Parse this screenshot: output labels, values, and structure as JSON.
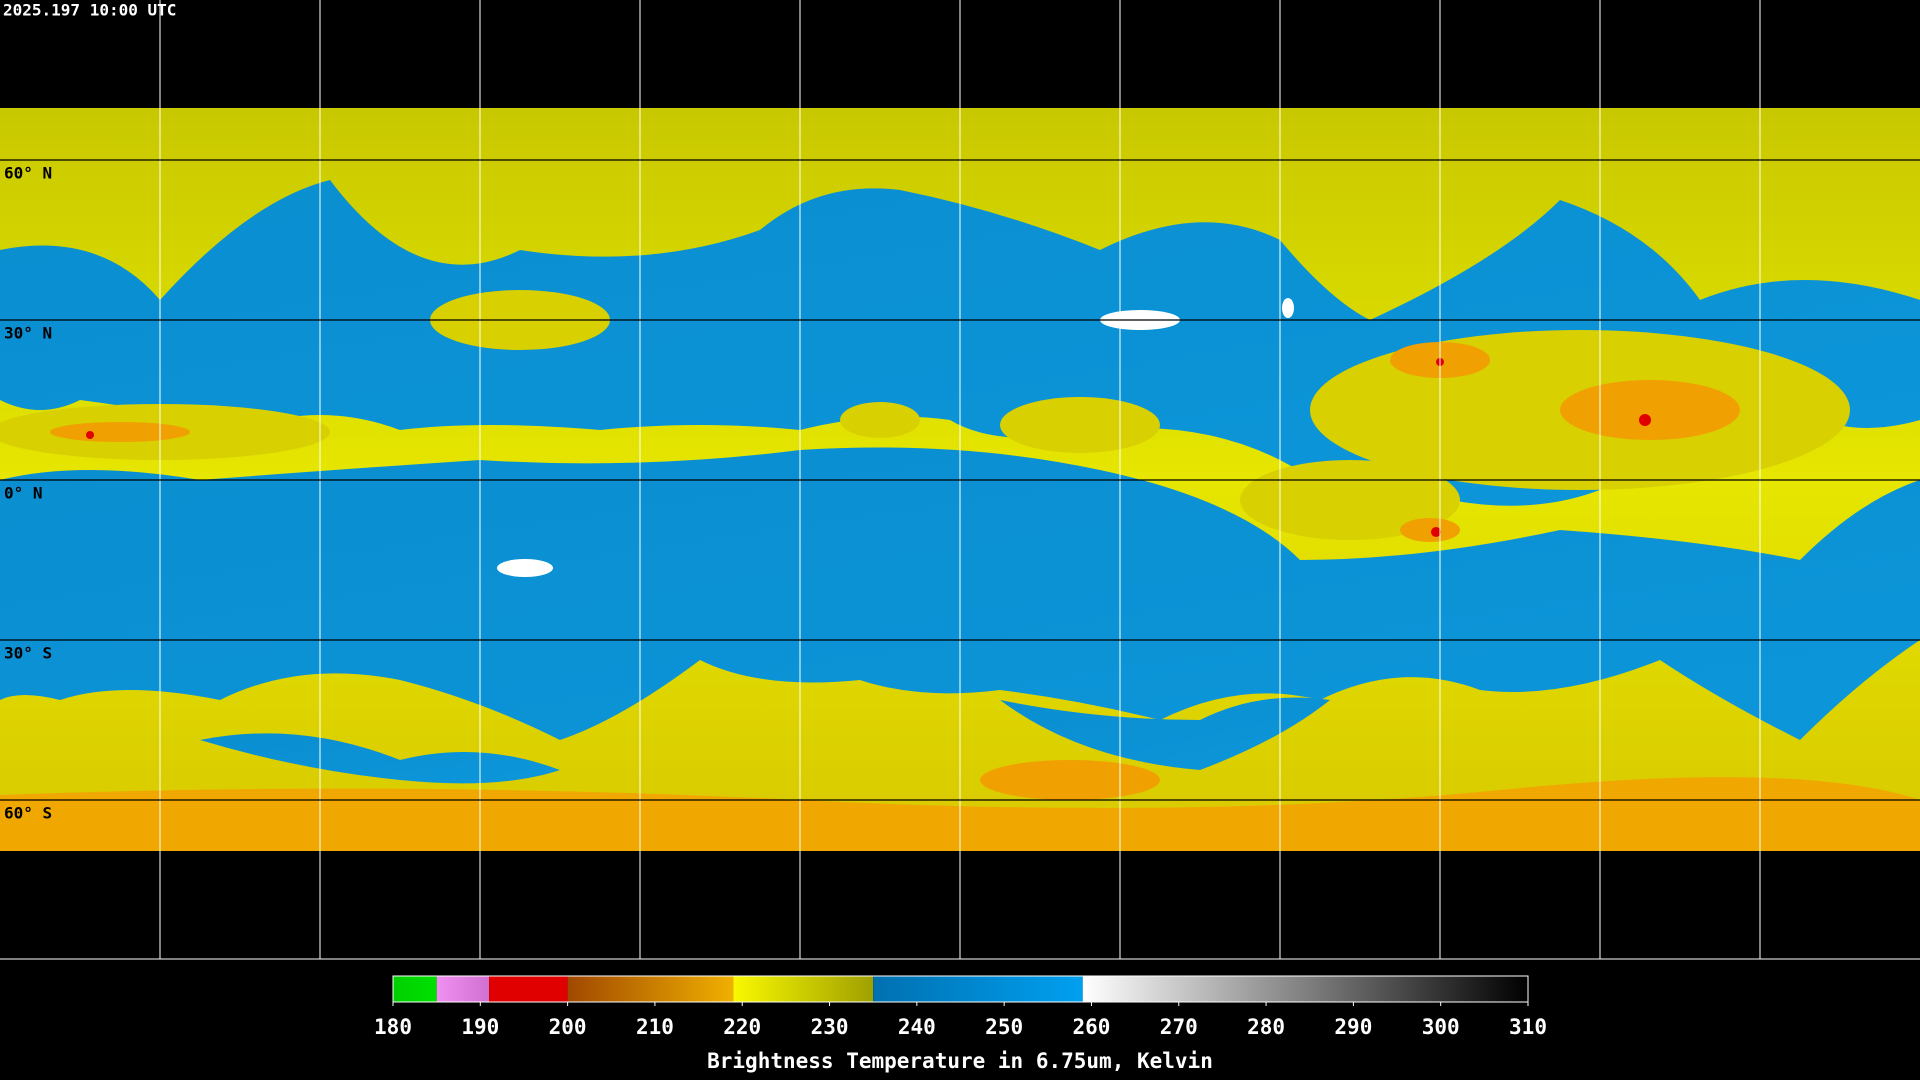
{
  "timestamp": "2025.197 10:00 UTC",
  "map": {
    "latitude_lines": [
      {
        "value": 60,
        "label": "60° N"
      },
      {
        "value": 30,
        "label": "30° N"
      },
      {
        "value": 0,
        "label": "0° N"
      },
      {
        "value": -30,
        "label": "30° S"
      },
      {
        "value": -60,
        "label": "60° S"
      }
    ]
  },
  "colorbar": {
    "title": "Brightness Temperature in 6.75um, Kelvin",
    "range": [
      180,
      310
    ],
    "ticks": [
      180,
      190,
      200,
      210,
      220,
      230,
      240,
      250,
      260,
      270,
      280,
      290,
      300,
      310
    ],
    "segments": [
      {
        "from": 180,
        "to": 185,
        "colors": [
          "#00d000",
          "#00e000"
        ]
      },
      {
        "from": 185,
        "to": 191,
        "colors": [
          "#f090f0",
          "#d070d0"
        ]
      },
      {
        "from": 191,
        "to": 200,
        "colors": [
          "#e00000",
          "#e00000"
        ]
      },
      {
        "from": 200,
        "to": 219,
        "colors": [
          "#a04800",
          "#f0b000"
        ]
      },
      {
        "from": 219,
        "to": 235,
        "colors": [
          "#f8f800",
          "#a0a000"
        ]
      },
      {
        "from": 235,
        "to": 259,
        "colors": [
          "#0070b0",
          "#00a0f0"
        ]
      },
      {
        "from": 259,
        "to": 310,
        "colors": [
          "#ffffff",
          "#000000"
        ]
      }
    ]
  }
}
